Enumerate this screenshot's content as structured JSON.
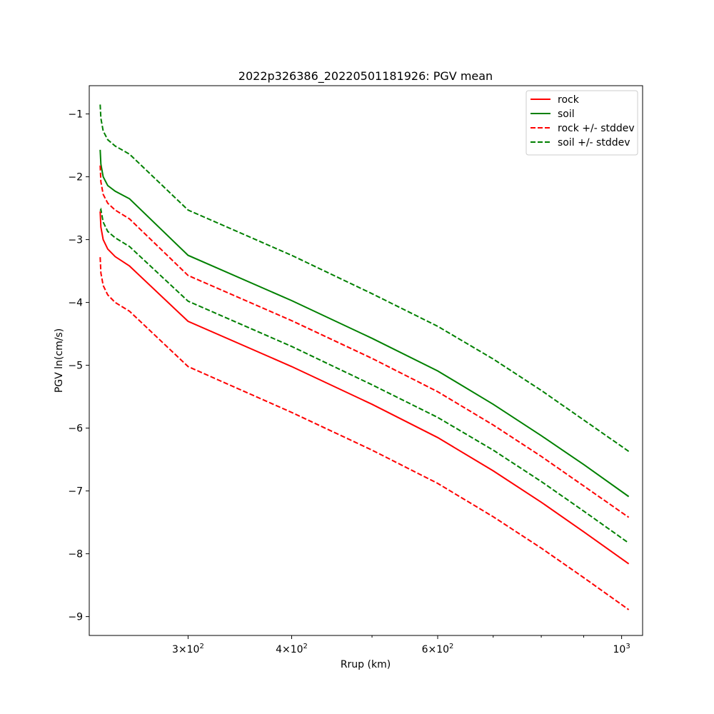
{
  "chart_data": {
    "type": "line",
    "title": "2022p326386_20220501181926: PGV mean",
    "xlabel": "Rrup (km)",
    "ylabel": "PGV ln(cm/s)",
    "xscale": "log",
    "xlim": [
      228,
      1060
    ],
    "ylim": [
      -9.3,
      -0.55
    ],
    "grid": false,
    "legend_position": "top-right",
    "x_major_ticks": [
      {
        "value": 300,
        "base": "3×10",
        "exp": "2"
      },
      {
        "value": 400,
        "base": "4×10",
        "exp": "2"
      },
      {
        "value": 600,
        "base": "6×10",
        "exp": "2"
      },
      {
        "value": 1000,
        "base": "10",
        "exp": "3"
      }
    ],
    "x_minor_ticks": [
      500,
      700,
      800,
      900
    ],
    "y_ticks": [
      {
        "value": -1,
        "label": "−1"
      },
      {
        "value": -2,
        "label": "−2"
      },
      {
        "value": -3,
        "label": "−3"
      },
      {
        "value": -4,
        "label": "−4"
      },
      {
        "value": -5,
        "label": "−5"
      },
      {
        "value": -6,
        "label": "−6"
      },
      {
        "value": -7,
        "label": "−7"
      },
      {
        "value": -8,
        "label": "−8"
      },
      {
        "value": -9,
        "label": "−9"
      }
    ],
    "x": [
      235,
      235.5,
      237,
      240,
      245,
      255,
      300,
      400,
      500,
      600,
      700,
      800,
      900,
      1020
    ],
    "series": [
      {
        "name": "rock",
        "color": "#ff0000",
        "dash": false,
        "values": [
          -2.55,
          -2.8,
          -3.0,
          -3.15,
          -3.27,
          -3.42,
          -4.3,
          -5.02,
          -5.62,
          -6.15,
          -6.68,
          -7.18,
          -7.65,
          -8.16
        ]
      },
      {
        "name": "soil",
        "color": "#008000",
        "dash": false,
        "values": [
          -1.57,
          -1.8,
          -2.0,
          -2.14,
          -2.23,
          -2.35,
          -3.25,
          -3.97,
          -4.57,
          -5.09,
          -5.62,
          -6.12,
          -6.58,
          -7.09
        ]
      },
      {
        "name": "rock +/- stddev",
        "color": "#ff0000",
        "dash": true,
        "values": [
          -1.82,
          -2.08,
          -2.28,
          -2.42,
          -2.53,
          -2.67,
          -3.57,
          -4.29,
          -4.89,
          -5.42,
          -5.95,
          -6.45,
          -6.92,
          -7.42
        ]
      },
      {
        "name": "",
        "color": "#ff0000",
        "dash": true,
        "values": [
          -3.28,
          -3.53,
          -3.73,
          -3.88,
          -4.0,
          -4.14,
          -5.02,
          -5.75,
          -6.35,
          -6.88,
          -7.41,
          -7.91,
          -8.38,
          -8.89
        ]
      },
      {
        "name": "soil +/- stddev",
        "color": "#008000",
        "dash": true,
        "values": [
          -0.85,
          -1.07,
          -1.27,
          -1.41,
          -1.51,
          -1.64,
          -2.53,
          -3.25,
          -3.86,
          -4.38,
          -4.9,
          -5.4,
          -5.87,
          -6.37
        ]
      },
      {
        "name": "",
        "color": "#008000",
        "dash": true,
        "values": [
          -2.54,
          -2.52,
          -2.72,
          -2.87,
          -2.97,
          -3.11,
          -3.98,
          -4.7,
          -5.31,
          -5.83,
          -6.35,
          -6.85,
          -7.32,
          -7.83
        ]
      }
    ]
  }
}
